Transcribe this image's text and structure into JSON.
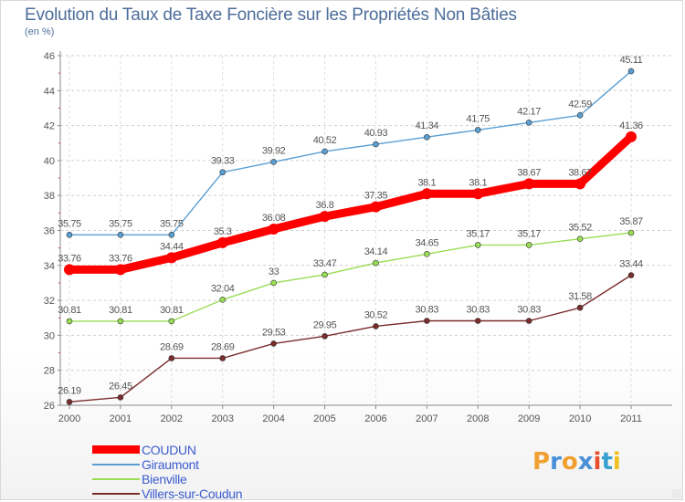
{
  "title": "Evolution du Taux de Taxe Foncière sur les Propriétés Non Bâties",
  "subtitle": "(en %)",
  "logo": {
    "text": "Proxiti",
    "colors": [
      "#f0a030",
      "#4a90d8",
      "#f0a030",
      "#4a90d8",
      "#e85030",
      "#3aa0d0",
      "#f0c020"
    ]
  },
  "chart_data": {
    "type": "line",
    "title": "Evolution du Taux de Taxe Foncière sur les Propriétés Non Bâties",
    "ylabel": "(en %)",
    "xlabel": "",
    "x": [
      "2000",
      "2001",
      "2002",
      "2003",
      "2004",
      "2005",
      "2006",
      "2007",
      "2008",
      "2009",
      "2010",
      "2011"
    ],
    "ylim": [
      26,
      46
    ],
    "yticks": [
      "26",
      "28",
      "30",
      "32",
      "34",
      "36",
      "38",
      "40",
      "42",
      "44",
      "46"
    ],
    "grid": true,
    "legend_position": "bottom-left",
    "series": [
      {
        "name": "COUDUN",
        "color": "#ff0000",
        "values": [
          33.76,
          33.76,
          34.44,
          35.3,
          36.08,
          36.8,
          37.35,
          38.1,
          38.1,
          38.67,
          38.67,
          41.36
        ],
        "labels": [
          "33.76",
          "33.76",
          "34.44",
          "35.3",
          "36.08",
          "36.8",
          "37.35",
          "38.1",
          "38.1",
          "38.67",
          "38.67",
          "41.36"
        ]
      },
      {
        "name": "Giraumont",
        "color": "#5a9fd4",
        "values": [
          35.75,
          35.75,
          35.75,
          39.33,
          39.92,
          40.52,
          40.93,
          41.34,
          41.75,
          42.17,
          42.59,
          45.11
        ],
        "labels": [
          "35.75",
          "35.75",
          "35.75",
          "39.33",
          "39.92",
          "40.52",
          "40.93",
          "41.34",
          "41.75",
          "42.17",
          "42.59",
          "45.11"
        ]
      },
      {
        "name": "Bienville",
        "color": "#99dd55",
        "values": [
          30.81,
          30.81,
          30.81,
          32.04,
          33,
          33.47,
          34.14,
          34.65,
          35.17,
          35.17,
          35.52,
          35.87
        ],
        "labels": [
          "30.81",
          "30.81",
          "30.81",
          "32.04",
          "33",
          "33.47",
          "34.14",
          "34.65",
          "35.17",
          "35.17",
          "35.52",
          "35.87"
        ]
      },
      {
        "name": "Villers-sur-Coudun",
        "color": "#7a2c2c",
        "values": [
          26.19,
          26.45,
          28.69,
          28.69,
          29.53,
          29.95,
          30.52,
          30.83,
          30.83,
          30.83,
          31.58,
          33.44
        ],
        "labels": [
          "26.19",
          "26.45",
          "28.69",
          "28.69",
          "29.53",
          "29.95",
          "30.52",
          "30.83",
          "30.83",
          "30.83",
          "31.58",
          "33.44"
        ]
      }
    ]
  }
}
